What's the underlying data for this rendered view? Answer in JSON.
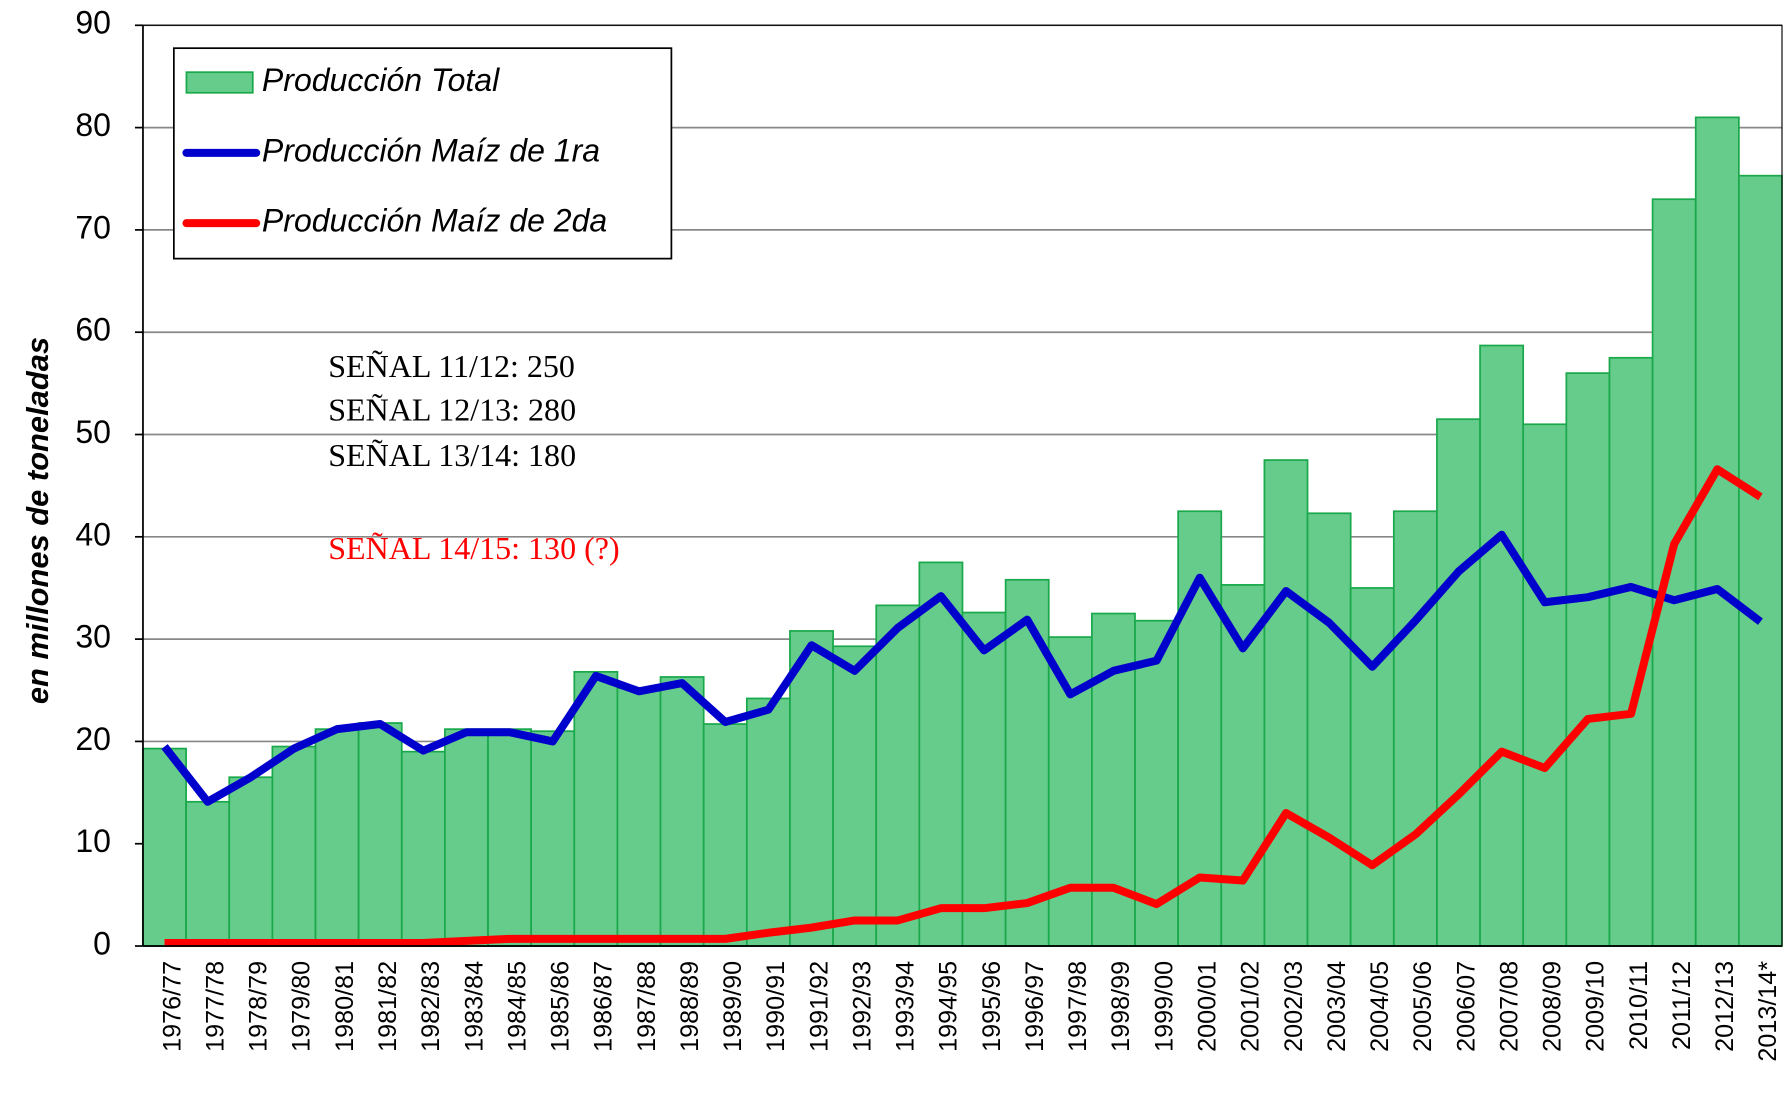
{
  "chart_data": {
    "type": "bar+line",
    "y_label": "en millones de toneladas",
    "categories": [
      "1976/77",
      "1977/78",
      "1978/79",
      "1979/80",
      "1980/81",
      "1981/82",
      "1982/83",
      "1983/84",
      "1984/85",
      "1985/86",
      "1986/87",
      "1987/88",
      "1988/89",
      "1989/90",
      "1990/91",
      "1991/92",
      "1992/93",
      "1993/94",
      "1994/95",
      "1995/96",
      "1996/97",
      "1997/98",
      "1998/99",
      "1999/00",
      "2000/01",
      "2001/02",
      "2002/03",
      "2003/04",
      "2004/05",
      "2005/06",
      "2006/07",
      "2007/08",
      "2008/09",
      "2009/10",
      "2010/11",
      "2011/12",
      "2012/13",
      "2013/14*"
    ],
    "series": [
      {
        "name": "Producción Total",
        "type": "bar",
        "color": "#66cc8c",
        "values": [
          19.3,
          14.1,
          16.5,
          19.5,
          21.2,
          21.8,
          19.0,
          21.2,
          21.2,
          21.0,
          26.8,
          25.2,
          26.3,
          21.7,
          24.2,
          30.8,
          29.3,
          33.3,
          37.5,
          32.6,
          35.8,
          30.2,
          32.5,
          31.8,
          42.5,
          35.3,
          47.5,
          42.3,
          35.0,
          42.5,
          51.5,
          58.7,
          51.0,
          56.0,
          57.5,
          73.0,
          81.0,
          75.3
        ]
      },
      {
        "name": "Producción Maíz de 1ra",
        "type": "line",
        "color": "#0000cc",
        "values": [
          19.5,
          14.1,
          16.5,
          19.3,
          21.2,
          21.7,
          19.1,
          20.9,
          20.9,
          20.0,
          26.4,
          24.9,
          25.7,
          21.9,
          23.1,
          29.4,
          26.9,
          31.1,
          34.2,
          28.9,
          31.9,
          24.6,
          26.9,
          27.9,
          36.0,
          29.1,
          34.7,
          31.6,
          27.3,
          31.8,
          36.6,
          40.2,
          33.6,
          34.1,
          35.1,
          33.8,
          34.9,
          31.7
        ]
      },
      {
        "name": "Producción Maíz de 2da",
        "type": "line",
        "color": "#ff0000",
        "values": [
          0.3,
          0.3,
          0.3,
          0.3,
          0.3,
          0.3,
          0.3,
          0.5,
          0.7,
          0.7,
          0.7,
          0.7,
          0.7,
          0.7,
          1.3,
          1.8,
          2.5,
          2.5,
          3.7,
          3.7,
          4.2,
          5.7,
          5.7,
          4.1,
          6.7,
          6.4,
          13.0,
          10.6,
          7.9,
          10.9,
          14.8,
          19.0,
          17.4,
          22.2,
          22.7,
          39.3,
          46.6,
          43.9
        ]
      }
    ],
    "annotations": [
      {
        "text": "SEÑAL 11/12: 250",
        "color": "#000000"
      },
      {
        "text": "SEÑAL 12/13: 280",
        "color": "#000000"
      },
      {
        "text": "SEÑAL 13/14: 180",
        "color": "#000000"
      },
      {
        "text": "SEÑAL 14/15: 130 (?)",
        "color": "#ff0000"
      }
    ],
    "ylim": [
      0,
      90
    ],
    "yticks": [
      0,
      10,
      20,
      30,
      40,
      50,
      60,
      70,
      80,
      90
    ],
    "grid": true,
    "legend": "top-left"
  }
}
